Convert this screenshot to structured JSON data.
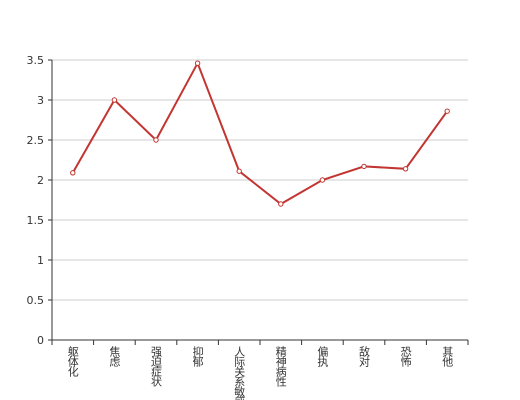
{
  "chart_data": {
    "type": "line",
    "categories": [
      "躯体化",
      "焦虑",
      "强迫症状",
      "抑郁",
      "人际关系敏感",
      "精神病性",
      "偏执",
      "敌对",
      "恐怖",
      "其他"
    ],
    "series": [
      {
        "color": "#c23531",
        "values": [
          2.09,
          3.0,
          2.5,
          3.46,
          2.11,
          1.7,
          2.0,
          2.17,
          2.14,
          2.86
        ]
      }
    ],
    "ylim": [
      0,
      3.5
    ],
    "yticks": [
      0,
      0.5,
      1,
      1.5,
      2,
      2.5,
      3,
      3.5
    ],
    "grid": true
  }
}
